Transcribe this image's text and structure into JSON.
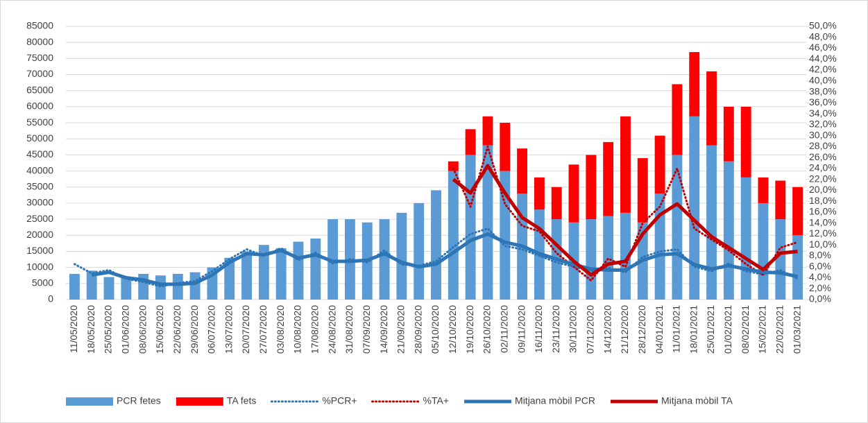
{
  "chart_data": {
    "type": "bar_line",
    "categories": [
      "11/05/2020",
      "18/05/2020",
      "25/05/2020",
      "01/06/2020",
      "08/06/2020",
      "15/06/2020",
      "22/06/2020",
      "29/06/2020",
      "06/07/2020",
      "13/07/2020",
      "20/07/2020",
      "27/07/2020",
      "03/08/2020",
      "10/08/2020",
      "17/08/2020",
      "24/08/2020",
      "31/08/2020",
      "07/09/2020",
      "14/09/2020",
      "21/09/2020",
      "28/09/2020",
      "05/10/2020",
      "12/10/2020",
      "19/10/2020",
      "26/10/2020",
      "02/11/2020",
      "09/11/2020",
      "16/11/2020",
      "23/11/2020",
      "30/11/2020",
      "07/12/2020",
      "14/12/2020",
      "21/12/2020",
      "28/12/2020",
      "04/01/2021",
      "11/01/2021",
      "18/01/2021",
      "25/01/2021",
      "01/02/2021",
      "08/02/2021",
      "15/02/2021",
      "22/02/2021",
      "01/03/2021"
    ],
    "series": [
      {
        "name": "PCR fetes",
        "type": "bar",
        "color": "#5b9bd5",
        "values": [
          8000,
          9000,
          7000,
          7000,
          8000,
          7500,
          8000,
          8500,
          10000,
          13000,
          15000,
          17000,
          16000,
          18000,
          19000,
          25000,
          25000,
          24000,
          25000,
          27000,
          30000,
          34000,
          40000,
          45000,
          48000,
          40000,
          33000,
          28000,
          25000,
          24000,
          25000,
          26000,
          27000,
          24000,
          33000,
          45000,
          57000,
          48000,
          43000,
          38000,
          30000,
          25000,
          20000
        ]
      },
      {
        "name": "TA fets",
        "type": "bar",
        "color": "#ff0000",
        "values": [
          0,
          0,
          0,
          0,
          0,
          0,
          0,
          0,
          0,
          0,
          0,
          0,
          0,
          0,
          0,
          0,
          0,
          0,
          0,
          0,
          0,
          0,
          3000,
          8000,
          9000,
          15000,
          14000,
          10000,
          10000,
          18000,
          20000,
          23000,
          30000,
          20000,
          18000,
          22000,
          20000,
          23000,
          17000,
          22000,
          8000,
          12000,
          15000
        ]
      },
      {
        "name": "%PCR+",
        "type": "line",
        "dashed": true,
        "axis": "y2",
        "color": "#2e75b6",
        "values": [
          6.5,
          4.8,
          5.4,
          3.8,
          3.2,
          2.4,
          3.0,
          3.4,
          5.2,
          7.4,
          9.2,
          8.0,
          9.4,
          7.2,
          8.6,
          6.6,
          7.4,
          6.8,
          9.0,
          6.4,
          6.2,
          7.0,
          9.6,
          12.0,
          13.0,
          9.8,
          9.2,
          8.0,
          6.8,
          6.0,
          5.2,
          5.8,
          5.0,
          7.8,
          8.8,
          9.2,
          6.0,
          5.2,
          6.6,
          5.2,
          4.6,
          5.4,
          3.8
        ]
      },
      {
        "name": "%TA+",
        "type": "line",
        "dashed": true,
        "axis": "y2",
        "color": "#c00000",
        "values": [
          null,
          null,
          null,
          null,
          null,
          null,
          null,
          null,
          null,
          null,
          null,
          null,
          null,
          null,
          null,
          null,
          null,
          null,
          null,
          null,
          null,
          null,
          24.0,
          17.0,
          28.0,
          17.5,
          13.5,
          12.5,
          8.5,
          6.0,
          3.5,
          7.5,
          6.0,
          14.0,
          17.0,
          24.0,
          13.0,
          11.0,
          9.0,
          6.5,
          4.5,
          9.5,
          10.5
        ]
      },
      {
        "name": "Mitjana mòbil PCR",
        "type": "line",
        "width": 5,
        "axis": "y2",
        "color": "#2e75b6",
        "values": [
          null,
          4.5,
          5.0,
          4.0,
          3.6,
          2.8,
          2.8,
          3.0,
          4.5,
          6.8,
          8.4,
          8.2,
          9.0,
          7.6,
          8.2,
          7.0,
          7.0,
          7.2,
          8.4,
          6.8,
          6.0,
          6.5,
          8.6,
          10.8,
          12.0,
          10.5,
          9.8,
          8.4,
          7.4,
          6.4,
          5.6,
          5.4,
          5.4,
          7.2,
          8.2,
          8.4,
          6.4,
          5.6,
          6.2,
          5.6,
          5.0,
          4.9,
          4.2
        ]
      },
      {
        "name": "Mitjana mòbil TA",
        "type": "line",
        "width": 5,
        "axis": "y2",
        "color": "#c00000",
        "values": [
          null,
          null,
          null,
          null,
          null,
          null,
          null,
          null,
          null,
          null,
          null,
          null,
          null,
          null,
          null,
          null,
          null,
          null,
          null,
          null,
          null,
          null,
          22.0,
          19.5,
          24.5,
          19.5,
          15.0,
          13.0,
          10.0,
          7.0,
          4.5,
          6.5,
          7.0,
          12.0,
          15.5,
          17.5,
          14.5,
          11.5,
          9.5,
          7.5,
          5.5,
          8.5,
          8.8
        ]
      }
    ],
    "ylim": [
      0,
      85000
    ],
    "yticks": [
      0,
      5000,
      10000,
      15000,
      20000,
      25000,
      30000,
      35000,
      40000,
      45000,
      50000,
      55000,
      60000,
      65000,
      70000,
      75000,
      80000,
      85000
    ],
    "y2lim": [
      0,
      50
    ],
    "y2ticks": [
      {
        "value": 0,
        "label": "0,0%"
      },
      {
        "value": 2,
        "label": "2,0%"
      },
      {
        "value": 4,
        "label": "4,0%"
      },
      {
        "value": 6,
        "label": "6,0%"
      },
      {
        "value": 8,
        "label": "8,0%"
      },
      {
        "value": 10,
        "label": "10,0%"
      },
      {
        "value": 12,
        "label": "12,0%"
      },
      {
        "value": 14,
        "label": "14,0%"
      },
      {
        "value": 16,
        "label": "16,0%"
      },
      {
        "value": 18,
        "label": "18,0%"
      },
      {
        "value": 20,
        "label": "20,0%"
      },
      {
        "value": 22,
        "label": "22,0%"
      },
      {
        "value": 24,
        "label": "24,0%"
      },
      {
        "value": 26,
        "label": "26,0%"
      },
      {
        "value": 28,
        "label": "28,0%"
      },
      {
        "value": 30,
        "label": "30,0%"
      },
      {
        "value": 32,
        "label": "32,0%"
      },
      {
        "value": 34,
        "label": "34,0%"
      },
      {
        "value": 36,
        "label": "36,0%"
      },
      {
        "value": 38,
        "label": "38,0%"
      },
      {
        "value": 40,
        "label": "40,0%"
      },
      {
        "value": 42,
        "label": "42,0%"
      },
      {
        "value": 44,
        "label": "44,0%"
      },
      {
        "value": 46,
        "label": "46,0%"
      },
      {
        "value": 48,
        "label": "48,0%"
      },
      {
        "value": 50,
        "label": "50,0%"
      }
    ],
    "grid": true,
    "legend": "bottom"
  }
}
